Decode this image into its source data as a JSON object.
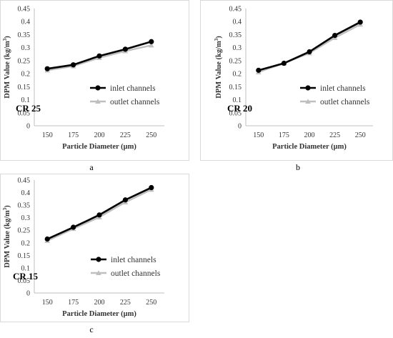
{
  "chart_data": [
    {
      "type": "line",
      "panel_letter": "a",
      "annotation": "CR 25",
      "xlabel": "Particle Diameter (μm)",
      "ylabel": "DPM Value (kg/m3)",
      "categories": [
        "150",
        "175",
        "200",
        "225",
        "250"
      ],
      "ylim": [
        0,
        0.45
      ],
      "yticks": [
        "0",
        "0.05",
        "0.1",
        "0.15",
        "0.2",
        "0.25",
        "0.3",
        "0.35",
        "0.4",
        "0.45"
      ],
      "grid": false,
      "legend_position": "center-right",
      "series": [
        {
          "name": "inlet channels",
          "color": "#000000",
          "marker": "circle",
          "values": [
            0.219,
            0.234,
            0.268,
            0.294,
            0.323
          ]
        },
        {
          "name": "outlet channels",
          "color": "#bfbfbf",
          "marker": "triangle",
          "values": [
            0.213,
            0.229,
            0.261,
            0.287,
            0.309
          ]
        }
      ]
    },
    {
      "type": "line",
      "panel_letter": "b",
      "annotation": "CR 20",
      "xlabel": "Particle Diameter (μm)",
      "ylabel": "DPM Value (kg/m3)",
      "categories": [
        "150",
        "175",
        "200",
        "225",
        "250"
      ],
      "ylim": [
        0,
        0.45
      ],
      "yticks": [
        "0",
        "0.05",
        "0.1",
        "0.15",
        "0.2",
        "0.25",
        "0.3",
        "0.35",
        "0.4",
        "0.45"
      ],
      "grid": false,
      "legend_position": "center-right",
      "series": [
        {
          "name": "inlet channels",
          "color": "#000000",
          "marker": "circle",
          "values": [
            0.213,
            0.24,
            0.284,
            0.347,
            0.398
          ]
        },
        {
          "name": "outlet channels",
          "color": "#bfbfbf",
          "marker": "triangle",
          "values": [
            0.206,
            0.24,
            0.279,
            0.338,
            0.389
          ]
        }
      ]
    },
    {
      "type": "line",
      "panel_letter": "c",
      "annotation": "CR 15",
      "xlabel": "Particle Diameter (μm)",
      "ylabel": "DPM Value (kg/m3)",
      "categories": [
        "150",
        "175",
        "200",
        "225",
        "250"
      ],
      "ylim": [
        0,
        0.45
      ],
      "yticks": [
        "0",
        "0.05",
        "0.1",
        "0.15",
        "0.2",
        "0.25",
        "0.3",
        "0.35",
        "0.4",
        "0.45"
      ],
      "grid": false,
      "legend_position": "center-right",
      "series": [
        {
          "name": "inlet channels",
          "color": "#000000",
          "marker": "circle",
          "values": [
            0.215,
            0.262,
            0.311,
            0.371,
            0.42
          ]
        },
        {
          "name": "outlet channels",
          "color": "#bfbfbf",
          "marker": "triangle",
          "values": [
            0.208,
            0.256,
            0.302,
            0.362,
            0.412
          ]
        }
      ]
    }
  ]
}
